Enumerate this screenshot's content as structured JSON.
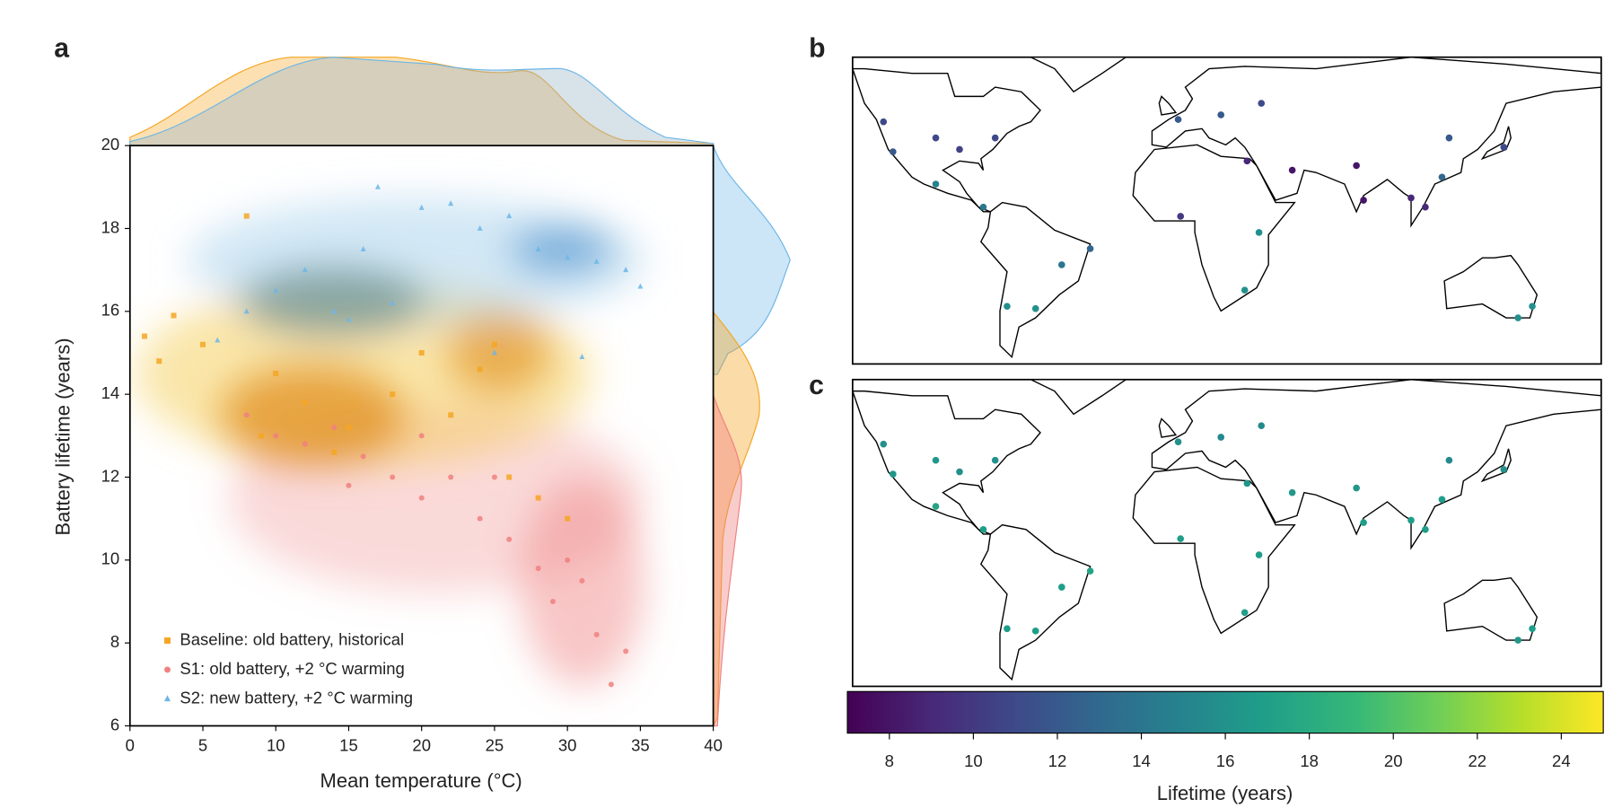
{
  "chart_data": [
    {
      "type": "scatter",
      "panel_label": "a",
      "x_label": "Mean temperature (°C)",
      "y_label": "Battery lifetime (years)",
      "xlim": [
        0,
        40
      ],
      "ylim": [
        6,
        20
      ],
      "xticks": [
        0,
        5,
        10,
        15,
        20,
        25,
        30,
        35,
        40
      ],
      "yticks": [
        6,
        8,
        10,
        12,
        14,
        16,
        18,
        20
      ],
      "legend": "lower left",
      "series": [
        {
          "name": "Baseline: old battery, historical",
          "color": "#f5a623",
          "marker": "square",
          "x": [
            1,
            2,
            3,
            5,
            8,
            10,
            12,
            15,
            18,
            20,
            22,
            25,
            26,
            28,
            30,
            9,
            14,
            24
          ],
          "values": [
            15.4,
            14.8,
            15.9,
            15.2,
            18.3,
            14.5,
            13.8,
            13.2,
            14.0,
            15.0,
            13.5,
            15.2,
            12.0,
            11.5,
            11.0,
            13.0,
            12.6,
            14.6
          ]
        },
        {
          "name": "S1: old battery, +2 °C warming",
          "color": "#f08080",
          "marker": "circle",
          "x": [
            8,
            10,
            12,
            14,
            16,
            18,
            20,
            22,
            24,
            26,
            28,
            29,
            30,
            31,
            32,
            33,
            34,
            25,
            20,
            15
          ],
          "values": [
            13.5,
            13.0,
            12.8,
            13.2,
            12.5,
            12.0,
            11.5,
            12.0,
            11.0,
            10.5,
            9.8,
            9.0,
            10.0,
            9.5,
            8.2,
            7.0,
            7.8,
            12.0,
            13.0,
            11.8
          ]
        },
        {
          "name": "S2: new battery, +2 °C warming",
          "color": "#6cb6e8",
          "marker": "triangle",
          "x": [
            6,
            8,
            10,
            12,
            14,
            16,
            17,
            18,
            20,
            22,
            24,
            26,
            28,
            30,
            32,
            34,
            35,
            15,
            25,
            31
          ],
          "values": [
            15.3,
            16.0,
            16.5,
            17.0,
            16.0,
            17.5,
            19.0,
            16.2,
            18.5,
            18.6,
            18.0,
            18.3,
            17.5,
            17.3,
            17.2,
            17.0,
            16.6,
            15.8,
            15.0,
            14.9
          ]
        }
      ]
    },
    {
      "type": "map",
      "panel_label": "b",
      "x": [
        -75,
        -90,
        -100,
        -118,
        -122,
        -100,
        -80,
        -47,
        -58,
        -70,
        -35,
        2,
        20,
        37,
        3,
        30,
        36,
        31,
        50,
        77,
        80,
        116,
        113,
        106,
        100,
        151,
        145,
        139
      ],
      "y": [
        40,
        35,
        40,
        34,
        47,
        20,
        10,
        -15,
        -34,
        -33,
        -8,
        48,
        50,
        55,
        6,
        -26,
        -1,
        30,
        26,
        28,
        13,
        40,
        23,
        10,
        14,
        -33,
        -38,
        36
      ],
      "values": [
        11,
        10.5,
        11,
        12,
        11,
        15,
        14,
        14,
        16,
        16,
        13,
        12,
        12,
        11,
        10,
        16,
        16,
        9,
        8,
        8,
        8,
        12,
        13,
        9,
        9,
        16,
        16,
        11
      ]
    },
    {
      "type": "map",
      "panel_label": "c",
      "x": [
        -75,
        -90,
        -100,
        -118,
        -122,
        -100,
        -80,
        -47,
        -58,
        -70,
        -35,
        2,
        20,
        37,
        3,
        30,
        36,
        31,
        50,
        77,
        80,
        116,
        113,
        106,
        100,
        151,
        145,
        139
      ],
      "y": [
        40,
        35,
        40,
        34,
        47,
        20,
        10,
        -15,
        -34,
        -33,
        -8,
        48,
        50,
        55,
        6,
        -26,
        -1,
        30,
        26,
        28,
        13,
        40,
        23,
        10,
        14,
        -33,
        -38,
        36
      ],
      "values": [
        16,
        16,
        16.5,
        16.5,
        16,
        17.5,
        17,
        17,
        17,
        17,
        17.5,
        16,
        15.5,
        15.5,
        17,
        17,
        17,
        16.5,
        16.5,
        16.5,
        17,
        15.5,
        17,
        17,
        17,
        17,
        16.5,
        16
      ]
    }
  ],
  "colorbar": {
    "label": "Lifetime (years)",
    "clim": [
      7,
      25
    ],
    "ticks": [
      8,
      10,
      12,
      14,
      16,
      18,
      20,
      22,
      24
    ]
  }
}
